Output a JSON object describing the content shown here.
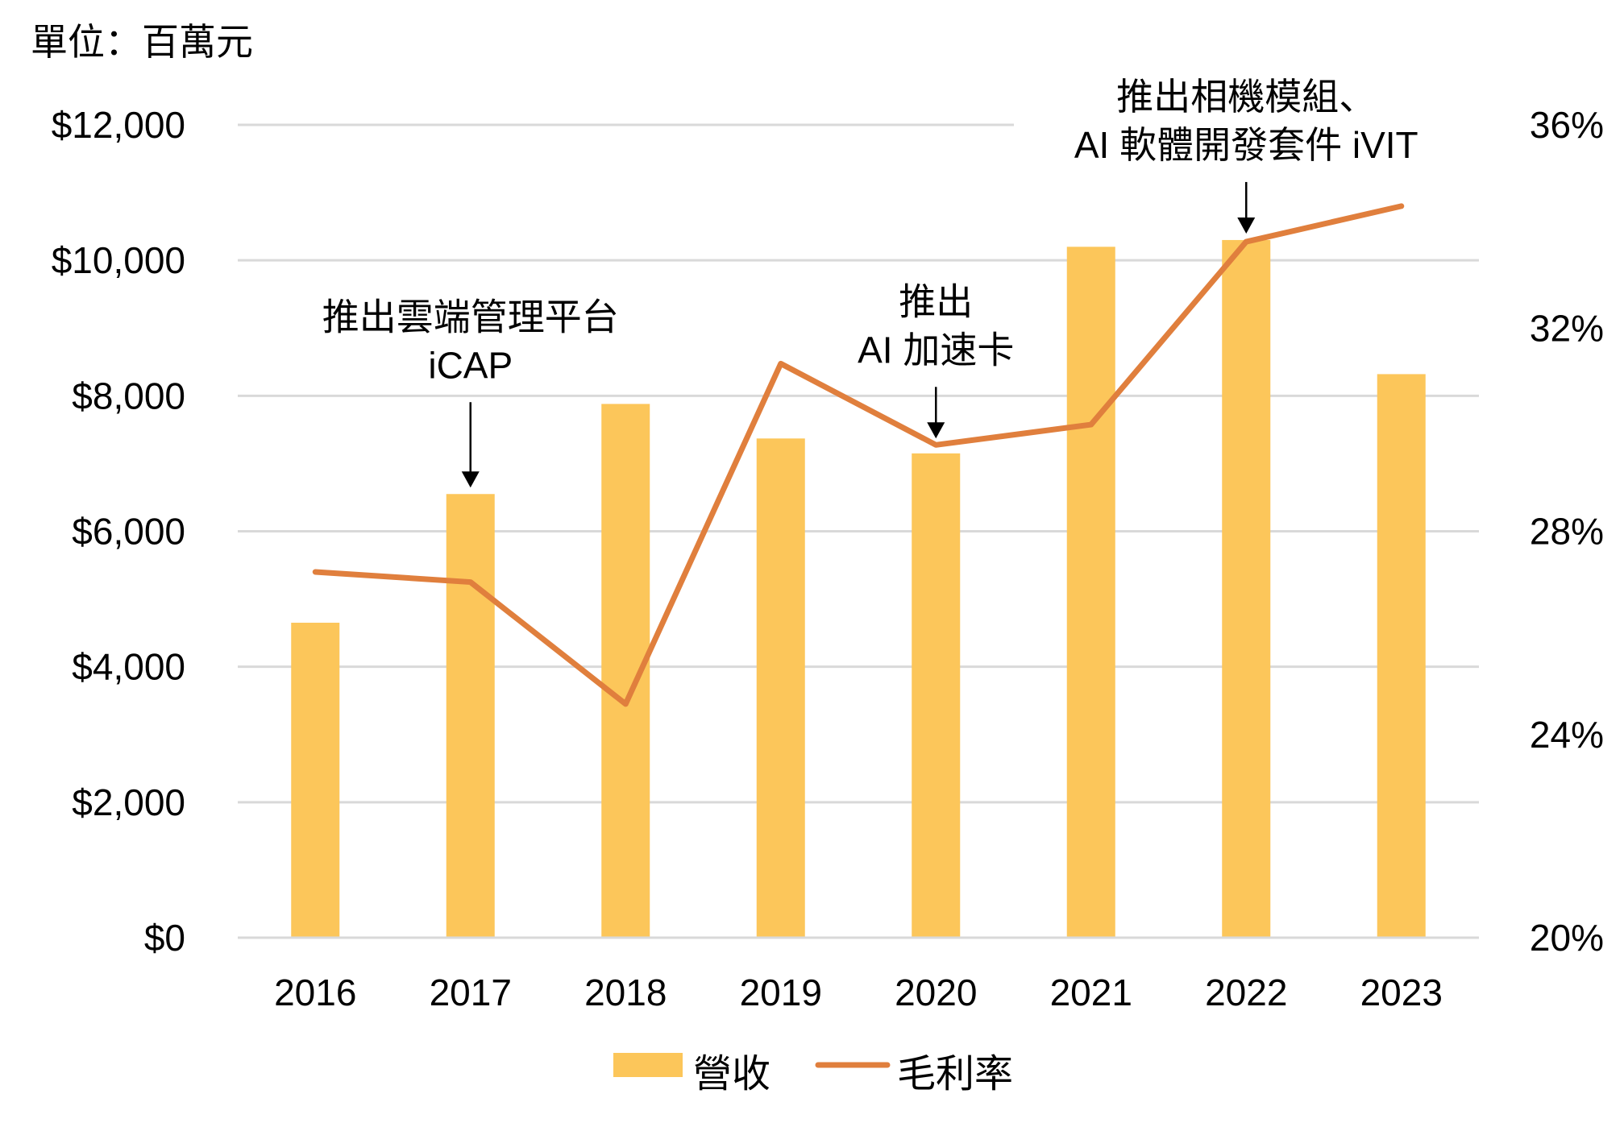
{
  "chart_data": {
    "type": "bar",
    "unit_label": "單位：百萬元",
    "categories": [
      "2016",
      "2017",
      "2018",
      "2019",
      "2020",
      "2021",
      "2022",
      "2023"
    ],
    "series": [
      {
        "name": "營收",
        "type": "bar",
        "axis": "left",
        "color": "#fcc65a",
        "values": [
          4650,
          6550,
          7880,
          7370,
          7150,
          10200,
          10300,
          8320
        ]
      },
      {
        "name": "毛利率",
        "type": "line",
        "axis": "right",
        "color": "#e07f3d",
        "values": [
          27.2,
          27.0,
          24.6,
          31.3,
          29.7,
          30.1,
          33.7,
          34.4
        ]
      }
    ],
    "y_left": {
      "ylim": [
        0,
        12000
      ],
      "ticks": [
        0,
        2000,
        4000,
        6000,
        8000,
        10000,
        12000
      ],
      "tick_labels": [
        "$0",
        "$2,000",
        "$4,000",
        "$6,000",
        "$8,000",
        "$10,000",
        "$12,000"
      ]
    },
    "y_right": {
      "ylim": [
        20,
        36
      ],
      "ticks": [
        20,
        24,
        28,
        32,
        36
      ],
      "tick_labels": [
        "20%",
        "24%",
        "28%",
        "32%",
        "36%"
      ]
    },
    "grid": true,
    "legend_position": "bottom-center",
    "annotations": [
      {
        "category": "2017",
        "lines": [
          "推出雲端管理平台",
          "iCAP"
        ]
      },
      {
        "category": "2020",
        "lines": [
          "推出",
          "AI 加速卡"
        ]
      },
      {
        "category": "2022",
        "lines": [
          "推出相機模組、",
          "AI 軟體開發套件 iVIT"
        ]
      }
    ]
  }
}
